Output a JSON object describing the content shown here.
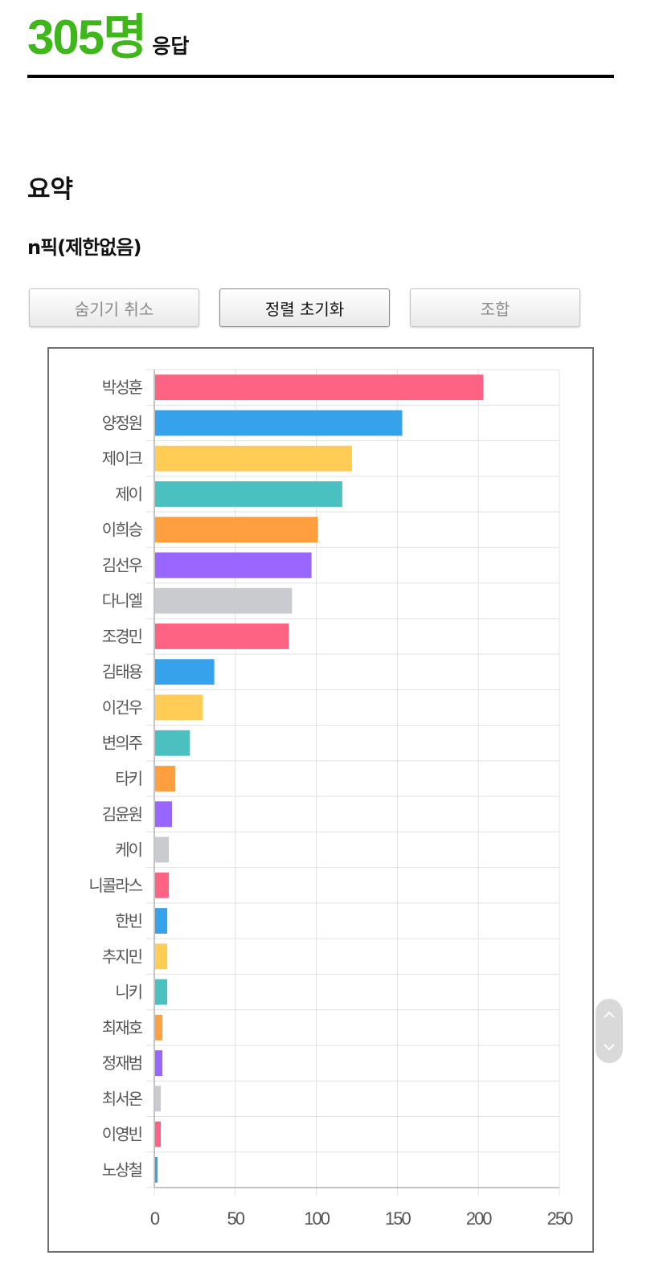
{
  "header": {
    "count": "305명",
    "count_suffix": "응답"
  },
  "summary": {
    "title": "요약"
  },
  "question": {
    "title": "n픽(제한없음)"
  },
  "buttons": [
    {
      "label": "숨기기 취소",
      "active": false
    },
    {
      "label": "정렬 초기화",
      "active": true
    },
    {
      "label": "조합",
      "active": false
    }
  ],
  "colors": {
    "accent": "#3fb619",
    "palette": [
      "#ff6384",
      "#36a2eb",
      "#ffcd56",
      "#4bc0c0",
      "#ff9f40",
      "#9966ff",
      "#c9cbcf"
    ]
  },
  "icons": {
    "scroll_up": "chevron-up-icon",
    "scroll_down": "chevron-down-icon"
  },
  "chart_data": {
    "type": "bar",
    "orientation": "horizontal",
    "categories": [
      "박성훈",
      "양정원",
      "제이크",
      "제이",
      "이희승",
      "김선우",
      "다니엘",
      "조경민",
      "김태용",
      "이건우",
      "변의주",
      "타키",
      "김윤원",
      "케이",
      "니콜라스",
      "한빈",
      "추지민",
      "니키",
      "최재호",
      "정재범",
      "최서온",
      "이영빈",
      "노상철"
    ],
    "values": [
      203,
      153,
      122,
      116,
      101,
      97,
      85,
      83,
      37,
      30,
      22,
      13,
      11,
      9,
      9,
      8,
      8,
      8,
      5,
      5,
      4,
      4,
      2
    ],
    "xlim": [
      0,
      250
    ],
    "xticks": [
      "0",
      "50",
      "100",
      "150",
      "200",
      "250"
    ],
    "grid": true,
    "legend": "none"
  }
}
